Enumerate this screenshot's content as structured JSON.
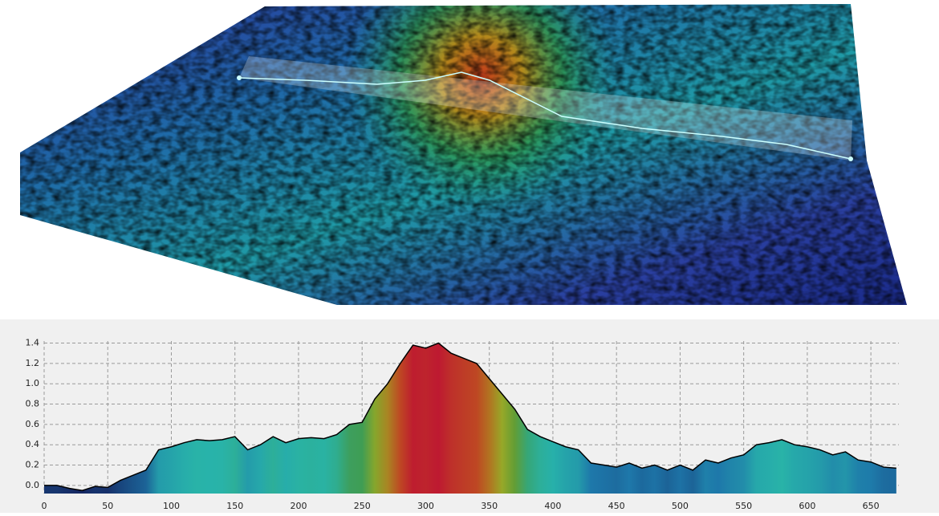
{
  "chart_data": {
    "type": "area",
    "x": [
      0,
      10,
      20,
      30,
      40,
      50,
      60,
      70,
      80,
      90,
      100,
      110,
      120,
      130,
      140,
      150,
      160,
      170,
      180,
      190,
      200,
      210,
      220,
      230,
      240,
      250,
      260,
      270,
      280,
      290,
      300,
      310,
      320,
      330,
      340,
      350,
      360,
      370,
      380,
      390,
      400,
      410,
      420,
      430,
      440,
      450,
      460,
      470,
      480,
      490,
      500,
      510,
      520,
      530,
      540,
      550,
      560,
      570,
      580,
      590,
      600,
      610,
      620,
      630,
      640,
      650,
      660,
      670
    ],
    "values": [
      0.0,
      0.0,
      -0.03,
      -0.05,
      -0.01,
      -0.02,
      0.05,
      0.1,
      0.15,
      0.35,
      0.38,
      0.42,
      0.45,
      0.44,
      0.45,
      0.48,
      0.35,
      0.4,
      0.48,
      0.42,
      0.46,
      0.47,
      0.46,
      0.5,
      0.6,
      0.62,
      0.85,
      1.0,
      1.2,
      1.38,
      1.35,
      1.4,
      1.3,
      1.25,
      1.2,
      1.05,
      0.9,
      0.75,
      0.55,
      0.48,
      0.43,
      0.38,
      0.35,
      0.22,
      0.2,
      0.18,
      0.22,
      0.17,
      0.2,
      0.15,
      0.2,
      0.15,
      0.25,
      0.22,
      0.27,
      0.3,
      0.4,
      0.42,
      0.45,
      0.4,
      0.38,
      0.35,
      0.3,
      0.33,
      0.25,
      0.23,
      0.18,
      0.17
    ],
    "xlim": [
      0,
      672
    ],
    "ylim": [
      -0.08,
      1.42
    ],
    "xticks": [
      0,
      50,
      100,
      150,
      200,
      250,
      300,
      350,
      400,
      450,
      500,
      550,
      600,
      650
    ],
    "yticks": [
      {
        "value": 0,
        "label": "0.0"
      },
      0.2,
      0.4,
      0.6,
      0.8,
      {
        "value": 1,
        "label": "1.0"
      },
      1.2,
      1.4
    ],
    "grid": true
  }
}
